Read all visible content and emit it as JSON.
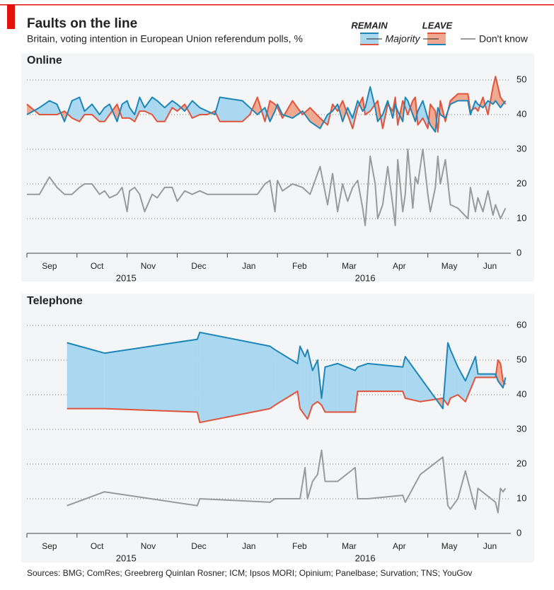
{
  "header": {
    "title": "Faults on the line",
    "subtitle": "Britain, voting intention in European Union referendum polls, %",
    "legend_note": "Majority",
    "source": "Sources: BMG; ComRes; Greebrerg Quinlan Rosner; ICM; Ipsos MORI; Opinium; Panelbase; Survation; TNS; YouGov"
  },
  "chart_data": [
    {
      "type": "line",
      "title": "Online",
      "x": [
        0.0,
        0.25,
        0.45,
        0.6,
        0.75,
        0.9,
        1.05,
        1.15,
        1.3,
        1.45,
        1.55,
        1.65,
        1.8,
        1.9,
        2.0,
        2.05,
        2.15,
        2.25,
        2.35,
        2.5,
        2.6,
        2.75,
        2.9,
        3.0,
        3.15,
        3.3,
        3.45,
        3.6,
        3.75,
        3.85,
        4.3,
        4.45,
        4.6,
        4.75,
        4.85,
        4.95,
        5.0,
        5.1,
        5.3,
        5.5,
        5.65,
        5.85,
        6.0,
        6.1,
        6.2,
        6.3,
        6.4,
        6.5,
        6.6,
        6.7,
        6.75,
        6.85,
        6.95,
        7.0,
        7.1,
        7.2,
        7.3,
        7.35,
        7.4,
        7.5,
        7.55,
        7.6,
        7.7,
        7.75,
        7.8,
        7.9,
        8.0,
        8.05,
        8.15,
        8.2,
        8.25,
        8.35,
        8.45,
        8.6,
        8.8,
        8.85,
        8.95,
        9.0,
        9.1,
        9.2,
        9.3,
        9.35,
        9.45,
        9.55
      ],
      "series": [
        {
          "name": "REMAIN",
          "color": "#1d86b8",
          "values": [
            40,
            42,
            44,
            43,
            38,
            44,
            45,
            41,
            43,
            40,
            42,
            43,
            38,
            43,
            44,
            42,
            40,
            45,
            42,
            45,
            44,
            42,
            44,
            43,
            41,
            44,
            42,
            41,
            40,
            45,
            44,
            42,
            40,
            42,
            38,
            41,
            43,
            40,
            39,
            41,
            38,
            36,
            40,
            41,
            43,
            38,
            42,
            39,
            44,
            41,
            42,
            48,
            42,
            38,
            40,
            44,
            39,
            43,
            41,
            38,
            45,
            44,
            40,
            38,
            41,
            44,
            39,
            37,
            35,
            42,
            40,
            39,
            43,
            44,
            44,
            40,
            44,
            43,
            42,
            44,
            43,
            44,
            42,
            44
          ]
        },
        {
          "name": "LEAVE",
          "color": "#e1533b",
          "values": [
            43,
            40,
            40,
            40,
            41,
            39,
            38,
            40,
            40,
            38,
            38,
            40,
            43,
            39,
            39,
            39,
            38,
            41,
            41,
            40,
            38,
            38,
            42,
            41,
            43,
            39,
            40,
            40,
            41,
            38,
            38,
            40,
            45,
            38,
            44,
            43,
            42,
            39,
            44,
            40,
            42,
            39,
            37,
            43,
            41,
            44,
            40,
            36,
            42,
            45,
            40,
            41,
            43,
            44,
            36,
            43,
            41,
            45,
            37,
            44,
            42,
            40,
            44,
            45,
            37,
            39,
            36,
            43,
            41,
            35,
            44,
            38,
            44,
            46,
            46,
            41,
            42,
            41,
            45,
            40,
            48,
            51,
            45,
            43
          ]
        },
        {
          "name": "Don't know",
          "color": "#9a9a9a",
          "values": [
            17,
            17,
            22,
            19,
            17,
            17,
            19,
            20,
            20,
            17,
            18,
            16,
            17,
            19,
            12,
            18,
            19,
            17,
            12,
            17,
            16,
            19,
            19,
            15,
            18,
            17,
            18,
            17,
            17,
            17,
            17,
            17,
            17,
            20,
            21,
            12,
            21,
            18,
            20,
            19,
            17,
            25,
            14,
            23,
            12,
            20,
            15,
            19,
            21,
            13,
            8,
            28,
            20,
            10,
            14,
            25,
            14,
            8,
            27,
            12,
            17,
            30,
            13,
            22,
            20,
            30,
            17,
            12,
            19,
            28,
            20,
            27,
            14,
            13,
            10,
            19,
            12,
            16,
            12,
            18,
            11,
            14,
            10,
            13
          ]
        }
      ],
      "xlim": [
        0,
        9.6
      ],
      "xticks": [
        {
          "value": 0.45,
          "label": "Sep"
        },
        {
          "value": 1.4,
          "label": "Oct"
        },
        {
          "value": 2.42,
          "label": "Nov"
        },
        {
          "value": 3.43,
          "label": "Dec"
        },
        {
          "value": 4.43,
          "label": "Jan"
        },
        {
          "value": 5.44,
          "label": "Feb"
        },
        {
          "value": 6.43,
          "label": "Mar"
        },
        {
          "value": 7.43,
          "label": "Apr"
        },
        {
          "value": 8.43,
          "label": "May"
        },
        {
          "value": 9.24,
          "label": "Jun"
        }
      ],
      "minor_xticks": [
        0,
        1,
        2,
        3,
        4,
        5,
        6,
        7,
        8,
        9
      ],
      "year_labels": [
        {
          "value": 1.98,
          "label": "2015"
        },
        {
          "value": 6.75,
          "label": "2016"
        }
      ],
      "ylim": [
        0,
        53
      ],
      "yticks": [
        0,
        10,
        20,
        30,
        40,
        50
      ],
      "grid": true,
      "fill_colors": {
        "remain": "#a9d8f0",
        "leave": "#f0a890"
      }
    },
    {
      "type": "line",
      "title": "Telephone",
      "x": [
        0.8,
        1.55,
        3.4,
        3.45,
        4.85,
        4.95,
        5.4,
        5.45,
        5.55,
        5.6,
        5.7,
        5.8,
        5.88,
        5.95,
        6.2,
        6.55,
        6.6,
        6.8,
        7.5,
        7.55,
        7.85,
        8.3,
        8.4,
        8.45,
        8.6,
        8.75,
        8.95,
        9.0,
        9.35,
        9.4,
        9.45,
        9.5,
        9.55
      ],
      "series": [
        {
          "name": "REMAIN",
          "color": "#1d86b8",
          "values": [
            55,
            52,
            56,
            58,
            54,
            53,
            49,
            54,
            51,
            53,
            47,
            50,
            39,
            48,
            49,
            47,
            48,
            49,
            48,
            51,
            45,
            36,
            55,
            53,
            48,
            44,
            51,
            46,
            46,
            44,
            43,
            42,
            45
          ]
        },
        {
          "name": "LEAVE",
          "color": "#e1533b",
          "values": [
            36,
            36,
            35,
            32,
            36,
            37,
            41,
            36,
            34,
            33,
            37,
            38,
            37,
            35,
            35,
            35,
            41,
            41,
            41,
            39,
            38,
            39,
            37,
            39,
            40,
            38,
            45,
            45,
            45,
            50,
            49,
            44,
            43
          ]
        },
        {
          "name": "Don't know",
          "color": "#9a9a9a",
          "values": [
            8,
            12,
            8,
            10,
            9,
            10,
            10,
            10,
            19,
            10,
            15,
            17,
            24,
            15,
            15,
            19,
            10,
            10,
            11,
            9,
            17,
            22,
            8,
            7,
            10,
            18,
            7,
            13,
            9,
            6,
            13,
            12,
            13
          ]
        }
      ],
      "xlim": [
        0,
        9.6
      ],
      "xticks": [
        {
          "value": 0.45,
          "label": "Sep"
        },
        {
          "value": 1.4,
          "label": "Oct"
        },
        {
          "value": 2.42,
          "label": "Nov"
        },
        {
          "value": 3.43,
          "label": "Dec"
        },
        {
          "value": 4.43,
          "label": "Jan"
        },
        {
          "value": 5.44,
          "label": "Feb"
        },
        {
          "value": 6.43,
          "label": "Mar"
        },
        {
          "value": 7.43,
          "label": "Apr"
        },
        {
          "value": 8.43,
          "label": "May"
        },
        {
          "value": 9.24,
          "label": "Jun"
        }
      ],
      "minor_xticks": [
        0,
        1,
        2,
        3,
        4,
        5,
        6,
        7,
        8,
        9
      ],
      "year_labels": [
        {
          "value": 1.98,
          "label": "2015"
        },
        {
          "value": 6.75,
          "label": "2016"
        }
      ],
      "ylim": [
        0,
        64
      ],
      "yticks": [
        0,
        10,
        20,
        30,
        40,
        50,
        60
      ],
      "grid": true,
      "fill_colors": {
        "remain": "#a9d8f0",
        "leave": "#f0a890"
      }
    }
  ]
}
